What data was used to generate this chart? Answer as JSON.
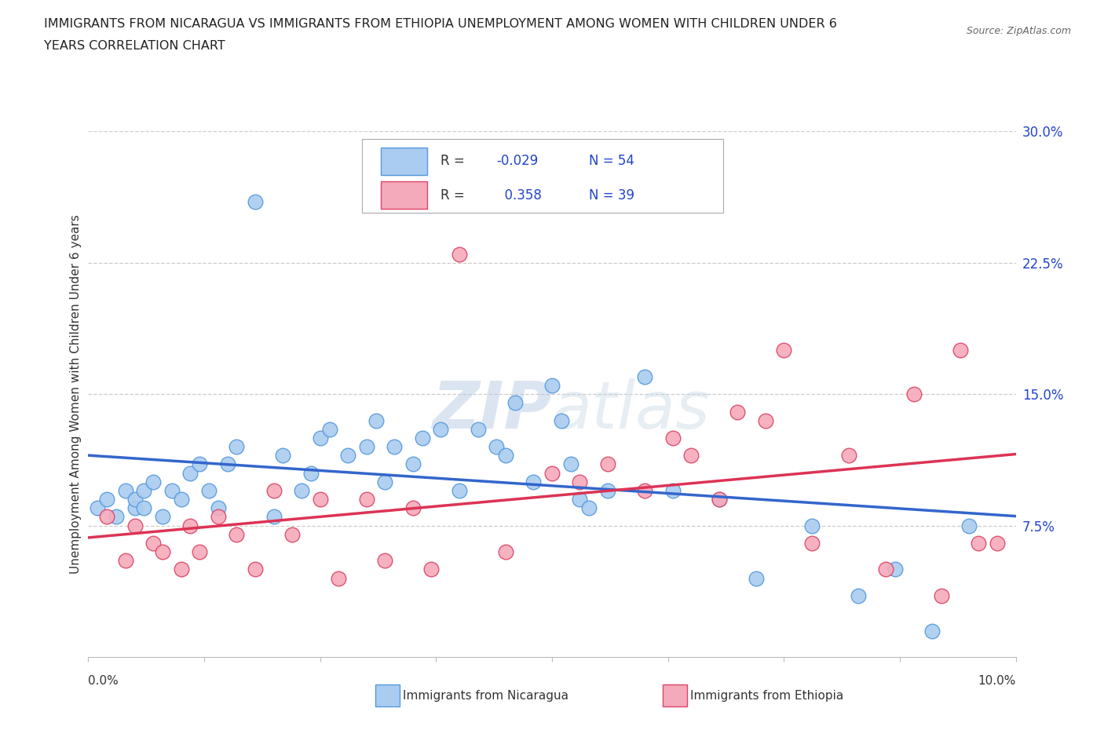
{
  "title_line1": "IMMIGRANTS FROM NICARAGUA VS IMMIGRANTS FROM ETHIOPIA UNEMPLOYMENT AMONG WOMEN WITH CHILDREN UNDER 6",
  "title_line2": "YEARS CORRELATION CHART",
  "source": "Source: ZipAtlas.com",
  "ylabel": "Unemployment Among Women with Children Under 6 years",
  "xlim": [
    0.0,
    10.0
  ],
  "ylim": [
    0.0,
    30.0
  ],
  "yticks": [
    7.5,
    15.0,
    22.5,
    30.0
  ],
  "nicaragua_color": "#aaccf0",
  "nicaragua_edge": "#5599dd",
  "ethiopia_color": "#f5aabb",
  "ethiopia_edge": "#dd4466",
  "nicaragua_line_color": "#3366cc",
  "ethiopia_line_color": "#dd3355",
  "r_color": "#2244cc",
  "legend_r_nicaragua": "-0.029",
  "legend_n_nicaragua": "54",
  "legend_r_ethiopia": "0.358",
  "legend_n_ethiopia": "39",
  "watermark_zip": "ZIP",
  "watermark_atlas": "atlas",
  "nicaragua_x": [
    0.1,
    0.2,
    0.3,
    0.4,
    0.5,
    0.5,
    0.6,
    0.6,
    0.7,
    0.8,
    0.9,
    1.0,
    1.1,
    1.2,
    1.3,
    1.4,
    1.5,
    1.6,
    1.8,
    2.0,
    2.1,
    2.3,
    2.4,
    2.5,
    2.6,
    2.8,
    3.0,
    3.1,
    3.2,
    3.3,
    3.5,
    3.6,
    3.8,
    4.0,
    4.2,
    4.4,
    4.5,
    4.6,
    4.8,
    5.0,
    5.1,
    5.2,
    5.3,
    5.4,
    5.6,
    6.0,
    6.3,
    6.8,
    7.2,
    7.8,
    8.3,
    8.7,
    9.1,
    9.5
  ],
  "nicaragua_y": [
    8.5,
    9.0,
    8.0,
    9.5,
    8.5,
    9.0,
    8.5,
    9.5,
    10.0,
    8.0,
    9.5,
    9.0,
    10.5,
    11.0,
    9.5,
    8.5,
    11.0,
    12.0,
    26.0,
    8.0,
    11.5,
    9.5,
    10.5,
    12.5,
    13.0,
    11.5,
    12.0,
    13.5,
    10.0,
    12.0,
    11.0,
    12.5,
    13.0,
    9.5,
    13.0,
    12.0,
    11.5,
    14.5,
    10.0,
    15.5,
    13.5,
    11.0,
    9.0,
    8.5,
    9.5,
    16.0,
    9.5,
    9.0,
    4.5,
    7.5,
    3.5,
    5.0,
    1.5,
    7.5
  ],
  "ethiopia_x": [
    0.2,
    0.4,
    0.5,
    0.7,
    0.8,
    1.0,
    1.1,
    1.2,
    1.4,
    1.6,
    1.8,
    2.0,
    2.2,
    2.5,
    2.7,
    3.0,
    3.2,
    3.5,
    3.7,
    4.0,
    4.5,
    5.0,
    5.3,
    5.6,
    6.0,
    6.3,
    6.5,
    6.8,
    7.0,
    7.3,
    7.5,
    7.8,
    8.2,
    8.6,
    8.9,
    9.2,
    9.4,
    9.6,
    9.8
  ],
  "ethiopia_y": [
    8.0,
    5.5,
    7.5,
    6.5,
    6.0,
    5.0,
    7.5,
    6.0,
    8.0,
    7.0,
    5.0,
    9.5,
    7.0,
    9.0,
    4.5,
    9.0,
    5.5,
    8.5,
    5.0,
    23.0,
    6.0,
    10.5,
    10.0,
    11.0,
    9.5,
    12.5,
    11.5,
    9.0,
    14.0,
    13.5,
    17.5,
    6.5,
    11.5,
    5.0,
    15.0,
    3.5,
    17.5,
    6.5,
    6.5
  ]
}
